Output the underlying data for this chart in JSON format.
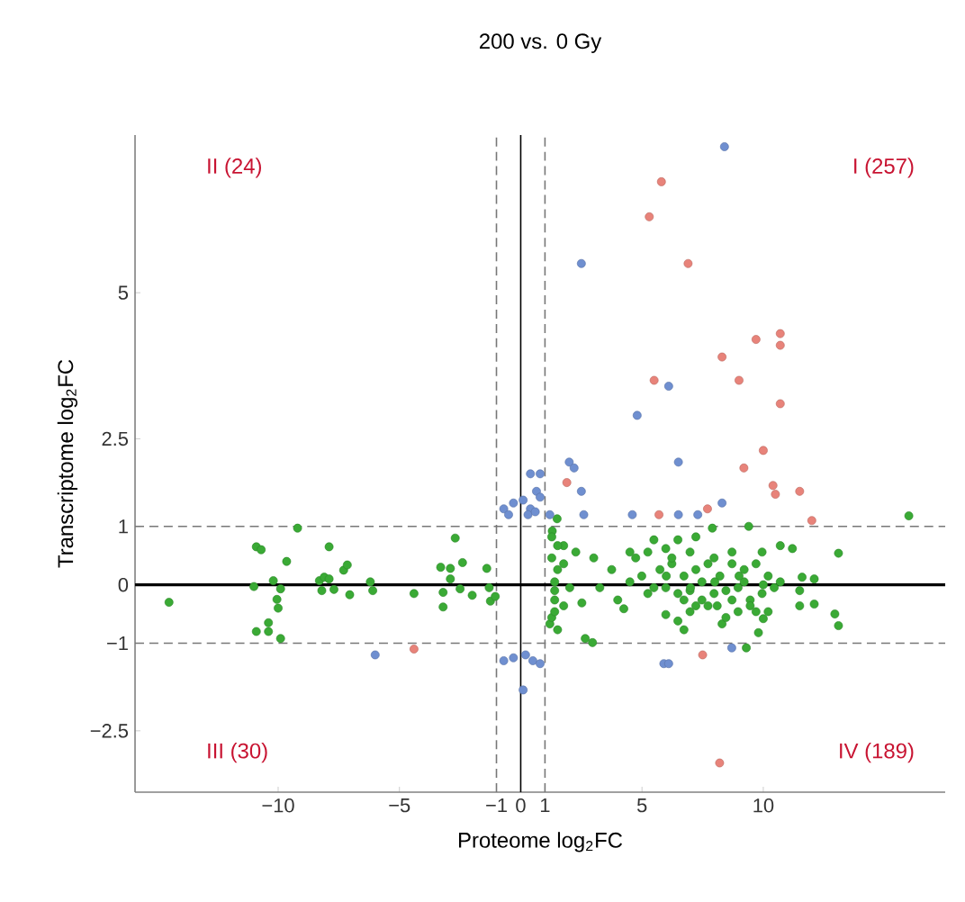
{
  "chart_data": {
    "type": "scatter",
    "title": "200  vs. 0 Gy",
    "xlabel": "Proteome log$_{2}$FC",
    "ylabel": "Transcriptome log$_{2}$FC",
    "xlim": [
      -15.9,
      17.5
    ],
    "ylim": [
      -3.55,
      7.7
    ],
    "xticks": [
      {
        "value": -10,
        "label": "−10"
      },
      {
        "value": -5,
        "label": "−5"
      },
      {
        "value": -1,
        "label": "−1"
      },
      0,
      1,
      5,
      10
    ],
    "yticks": [
      {
        "value": -2.5,
        "label": "−2.5"
      },
      {
        "value": -1,
        "label": "−1"
      },
      0,
      1,
      2.5,
      5
    ],
    "marker": "circle",
    "annotations": [
      "II (24)",
      "I (257)",
      "III (30)",
      "IV (189)"
    ],
    "ref_lines": [
      {
        "axis": "x",
        "value": -1,
        "color": "#777777",
        "line_style": "dashed"
      },
      {
        "axis": "x",
        "value": 0,
        "color": "#000000",
        "line_style": "solid"
      },
      {
        "axis": "x",
        "value": 1,
        "color": "#777777",
        "line_style": "dashed"
      },
      {
        "axis": "y",
        "value": 1,
        "color": "#777777",
        "line_style": "dashed"
      },
      {
        "axis": "y",
        "value": 0,
        "color": "#000000",
        "line_style": "solid"
      },
      {
        "axis": "y",
        "value": -1,
        "color": "#777777",
        "line_style": "dashed"
      }
    ],
    "series": [
      {
        "color": "#3aaa35",
        "x": [
          -14.5,
          -9.2,
          -10.9,
          -10.7,
          -7.9,
          -9.65,
          -11.0,
          -10.2,
          -9.9,
          -10.05,
          -10.0,
          -10.4,
          -10.9,
          -10.4,
          -9.9,
          -8.3,
          -8.1,
          -7.9,
          -8.2,
          -7.7,
          -7.3,
          -7.15,
          -7.05,
          -6.2,
          -6.1,
          -4.4,
          -2.7,
          -3.3,
          -2.9,
          -2.4,
          -2.9,
          -3.2,
          -3.2,
          -2.5,
          -2.0,
          -1.4,
          -1.3,
          -1.25,
          -1.05,
          16.0,
          9.4,
          7.9,
          13.1,
          12.95,
          13.1,
          12.1,
          11.5,
          11.6,
          12.1,
          11.5,
          10.7,
          11.2,
          9.3,
          9.8,
          10.0,
          2.66,
          2.96,
          1.5,
          1.3,
          1.2,
          1.77,
          2.27,
          3.01,
          1.52,
          1.4,
          1.77,
          2.52,
          3.26,
          3.75,
          4.0,
          4.25,
          4.5,
          4.99,
          5.49,
          5.98,
          6.48,
          7.22,
          5.74,
          6.23,
          6.73,
          7.22,
          7.72,
          8.21,
          8.71,
          9.21,
          9.7,
          10.2,
          10.7,
          5.98,
          6.48,
          6.98,
          7.47,
          7.97,
          8.46,
          8.96,
          9.46,
          9.95,
          10.45,
          5.98,
          6.48,
          6.73,
          6.98,
          7.72,
          8.3,
          8.46,
          8.96,
          9.46,
          10.2,
          6.73,
          7.22,
          8.1,
          8.71,
          9.7,
          1.28,
          1.4,
          1.4,
          1.28,
          1.52,
          1.77,
          2.02,
          1.28,
          1.4,
          1.52,
          4.74,
          5.24,
          5.49,
          6.23,
          6.98,
          7.47,
          7.97,
          8.71,
          9.21,
          9.95,
          4.5,
          5.24,
          6.0,
          7.0,
          8.0,
          9.0,
          10.0
        ],
        "values": [
          -0.3,
          0.97,
          0.65,
          0.6,
          0.65,
          0.4,
          -0.03,
          0.07,
          -0.07,
          -0.25,
          -0.4,
          -0.65,
          -0.8,
          -0.8,
          -0.92,
          0.07,
          0.13,
          0.1,
          -0.1,
          -0.08,
          0.25,
          0.34,
          -0.17,
          0.05,
          -0.1,
          -0.15,
          0.8,
          0.3,
          0.28,
          0.38,
          0.1,
          -0.13,
          -0.38,
          -0.07,
          -0.18,
          0.28,
          -0.05,
          -0.28,
          -0.2,
          1.18,
          1.0,
          0.97,
          0.54,
          -0.5,
          -0.7,
          -0.33,
          -0.36,
          0.13,
          0.1,
          -0.1,
          0.67,
          0.62,
          -1.08,
          -0.82,
          -0.58,
          -0.92,
          -0.99,
          1.13,
          0.92,
          -0.67,
          0.67,
          0.56,
          0.46,
          0.26,
          -0.1,
          -0.36,
          -0.31,
          -0.05,
          0.26,
          -0.26,
          -0.41,
          0.56,
          0.15,
          0.77,
          0.62,
          0.77,
          0.82,
          0.26,
          0.36,
          0.15,
          0.26,
          0.36,
          0.15,
          0.36,
          0.26,
          0.36,
          0.15,
          0.05,
          -0.05,
          -0.15,
          -0.1,
          -0.26,
          -0.15,
          -0.1,
          -0.05,
          -0.26,
          -0.15,
          -0.05,
          -0.51,
          -0.62,
          -0.77,
          -0.46,
          -0.36,
          -0.67,
          -0.56,
          -0.46,
          -0.36,
          -0.46,
          -0.26,
          -0.36,
          -0.36,
          -0.26,
          -0.46,
          0.46,
          0.05,
          -0.26,
          -0.56,
          0.67,
          0.36,
          -0.05,
          0.82,
          -0.46,
          -0.77,
          0.46,
          0.56,
          -0.05,
          0.46,
          0.56,
          0.05,
          0.46,
          0.56,
          0.05,
          0.56,
          0.05,
          -0.15,
          0.15,
          -0.05,
          0.05,
          0.15,
          0.0
        ]
      },
      {
        "color": "#6f8fd0",
        "x": [
          8.4,
          2.5,
          6.1,
          4.8,
          6.5,
          8.3,
          2.0,
          2.2,
          2.5,
          0.4,
          0.8,
          0.65,
          -0.7,
          -0.3,
          0.1,
          0.4,
          0.8,
          1.2,
          -0.5,
          0.3,
          0.6,
          4.6,
          6.5,
          7.3,
          2.6,
          -0.7,
          -0.3,
          0.2,
          0.5,
          0.8,
          0.1,
          5.9,
          6.1,
          8.7,
          -6.0
        ],
        "values": [
          7.5,
          5.5,
          3.4,
          2.9,
          2.1,
          1.4,
          2.1,
          2.0,
          1.6,
          1.9,
          1.9,
          1.6,
          1.3,
          1.4,
          1.45,
          1.3,
          1.5,
          1.2,
          1.2,
          1.2,
          1.25,
          1.2,
          1.2,
          1.2,
          1.2,
          -1.3,
          -1.25,
          -1.2,
          -1.3,
          -1.35,
          -1.8,
          -1.35,
          -1.35,
          -1.08,
          -1.2
        ]
      },
      {
        "color": "#e8837a",
        "x": [
          5.8,
          5.3,
          6.9,
          9.7,
          10.7,
          10.7,
          8.3,
          5.5,
          9.0,
          10.7,
          10.0,
          9.2,
          10.4,
          10.5,
          11.5,
          1.9,
          5.7,
          7.7,
          12.0,
          7.5,
          8.2,
          -4.4
        ],
        "values": [
          6.9,
          6.3,
          5.5,
          4.2,
          4.3,
          4.1,
          3.9,
          3.5,
          3.5,
          3.1,
          2.3,
          2.0,
          1.7,
          1.55,
          1.6,
          1.75,
          1.2,
          1.3,
          1.1,
          -1.2,
          -3.05,
          -1.1
        ]
      }
    ]
  }
}
